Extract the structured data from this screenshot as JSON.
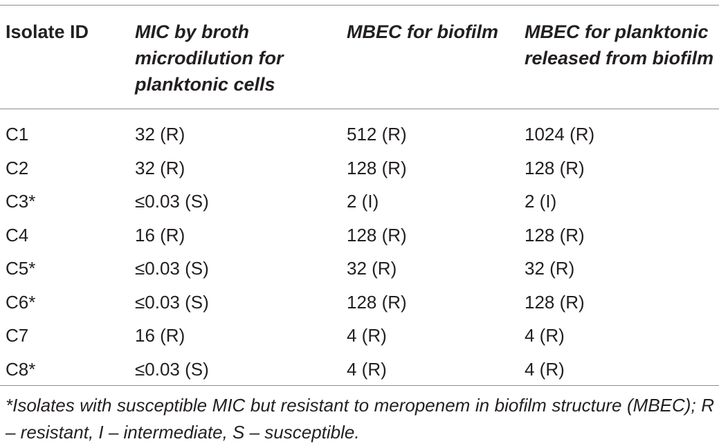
{
  "table": {
    "headers": [
      "Isolate ID",
      "MIC by broth microdilution for planktonic cells",
      "MBEC for biofilm",
      "MBEC for planktonic released from biofilm"
    ],
    "rows": [
      [
        "C1",
        "32 (R)",
        "512 (R)",
        "1024 (R)"
      ],
      [
        "C2",
        "32 (R)",
        "128 (R)",
        "128 (R)"
      ],
      [
        "C3*",
        "≤0.03 (S)",
        "2 (I)",
        "2 (I)"
      ],
      [
        "C4",
        "16 (R)",
        "128 (R)",
        "128 (R)"
      ],
      [
        "C5*",
        "≤0.03 (S)",
        "32 (R)",
        "32 (R)"
      ],
      [
        "C6*",
        "≤0.03 (S)",
        "128 (R)",
        "128 (R)"
      ],
      [
        "C7",
        "16 (R)",
        "4 (R)",
        "4 (R)"
      ],
      [
        "C8*",
        "≤0.03 (S)",
        "4 (R)",
        "4 (R)"
      ]
    ]
  },
  "footnote": "*Isolates with susceptible MIC but resistant to meropenem in biofilm structure (MBEC); R – resistant, I – intermediate, S – susceptible."
}
